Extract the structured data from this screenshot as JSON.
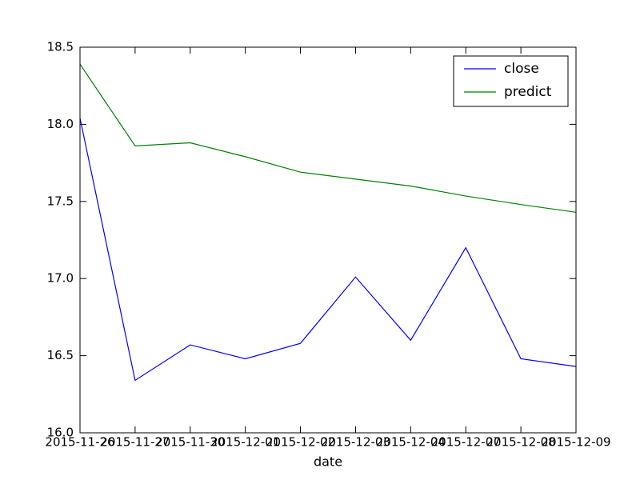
{
  "chart_data": {
    "type": "line",
    "x_label": "date",
    "categories": [
      "2015-11-26",
      "2015-11-27",
      "2015-11-30",
      "2015-12-01",
      "2015-12-02",
      "2015-12-03",
      "2015-12-04",
      "2015-12-07",
      "2015-12-08",
      "2015-12-09"
    ],
    "series": [
      {
        "name": "close",
        "color": "#0000ff",
        "values": [
          18.04,
          16.34,
          16.57,
          16.48,
          16.58,
          17.01,
          16.6,
          17.2,
          16.48,
          16.43
        ]
      },
      {
        "name": "predict",
        "color": "#008000",
        "values": [
          18.39,
          17.86,
          17.88,
          17.79,
          17.69,
          17.645,
          17.6,
          17.535,
          17.48,
          17.43
        ]
      }
    ],
    "ylim": [
      16,
      18.5
    ],
    "yticks": [
      {
        "value": 16,
        "label": "16.0"
      },
      16.5,
      {
        "value": 17,
        "label": "17.0"
      },
      17.5,
      {
        "value": 18,
        "label": "18.0"
      },
      18.5
    ],
    "legend": "upper right",
    "grid": false
  }
}
